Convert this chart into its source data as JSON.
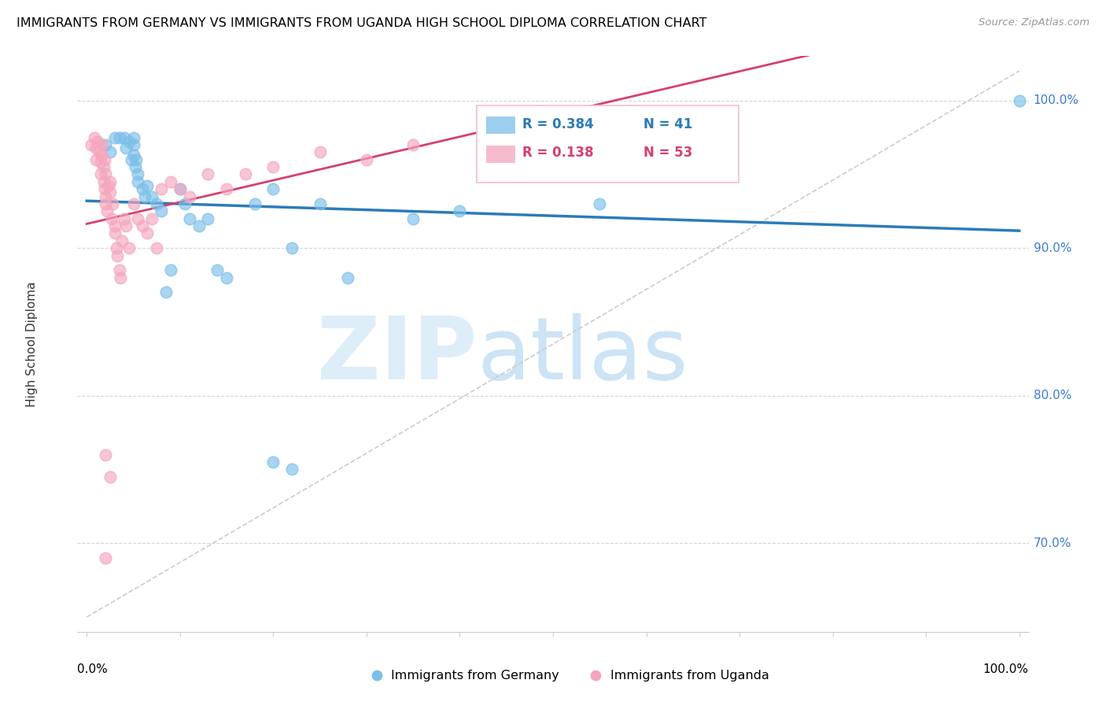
{
  "title": "IMMIGRANTS FROM GERMANY VS IMMIGRANTS FROM UGANDA HIGH SCHOOL DIPLOMA CORRELATION CHART",
  "source": "Source: ZipAtlas.com",
  "ylabel": "High School Diploma",
  "yticks": [
    70.0,
    80.0,
    90.0,
    100.0
  ],
  "ytick_labels": [
    "70.0%",
    "80.0%",
    "90.0%",
    "100.0%"
  ],
  "legend_blue_r": "R = 0.384",
  "legend_blue_n": "N = 41",
  "legend_pink_r": "R = 0.138",
  "legend_pink_n": "N = 53",
  "blue_color": "#7bbfe8",
  "pink_color": "#f4a6be",
  "blue_line_color": "#2b7bba",
  "pink_line_color": "#d44070",
  "xmin": 0,
  "xmax": 100,
  "ymin": 64,
  "ymax": 103,
  "germany_x": [
    2.0,
    2.5,
    3.0,
    3.5,
    4.0,
    4.2,
    4.5,
    4.8,
    5.0,
    5.0,
    5.0,
    5.2,
    5.3,
    5.5,
    5.5,
    6.0,
    6.2,
    6.5,
    7.0,
    7.5,
    8.0,
    8.5,
    9.0,
    10.0,
    10.5,
    11.0,
    12.0,
    13.0,
    14.0,
    15.0,
    18.0,
    20.0,
    22.0,
    25.0,
    28.0,
    22.0,
    35.0,
    40.0,
    20.0,
    55.0,
    100.0
  ],
  "germany_y": [
    97.0,
    96.5,
    97.5,
    97.5,
    97.5,
    96.8,
    97.2,
    96.0,
    96.3,
    97.0,
    97.5,
    95.5,
    96.0,
    95.0,
    94.5,
    94.0,
    93.5,
    94.2,
    93.5,
    93.0,
    92.5,
    87.0,
    88.5,
    94.0,
    93.0,
    92.0,
    91.5,
    92.0,
    88.5,
    88.0,
    93.0,
    94.0,
    90.0,
    93.0,
    88.0,
    75.0,
    92.0,
    92.5,
    75.5,
    93.0,
    100.0
  ],
  "uganda_x": [
    0.5,
    0.8,
    1.0,
    1.0,
    1.2,
    1.3,
    1.5,
    1.5,
    1.6,
    1.7,
    1.8,
    1.8,
    1.9,
    1.9,
    2.0,
    2.0,
    2.0,
    2.2,
    2.3,
    2.5,
    2.5,
    2.7,
    2.8,
    3.0,
    3.0,
    3.2,
    3.3,
    3.5,
    3.6,
    3.8,
    4.0,
    4.2,
    4.5,
    5.0,
    5.5,
    6.0,
    6.5,
    7.0,
    7.5,
    8.0,
    9.0,
    10.0,
    11.0,
    13.0,
    15.0,
    17.0,
    20.0,
    25.0,
    30.0,
    35.0,
    2.0,
    2.5,
    2.0
  ],
  "uganda_y": [
    97.0,
    97.5,
    96.8,
    96.0,
    97.2,
    96.5,
    95.8,
    95.0,
    96.3,
    97.0,
    94.5,
    95.5,
    96.0,
    94.0,
    95.0,
    93.5,
    93.0,
    92.5,
    94.2,
    94.5,
    93.8,
    92.0,
    93.0,
    91.5,
    91.0,
    90.0,
    89.5,
    88.5,
    88.0,
    90.5,
    92.0,
    91.5,
    90.0,
    93.0,
    92.0,
    91.5,
    91.0,
    92.0,
    90.0,
    94.0,
    94.5,
    94.0,
    93.5,
    95.0,
    94.0,
    95.0,
    95.5,
    96.5,
    96.0,
    97.0,
    76.0,
    74.5,
    69.0
  ]
}
